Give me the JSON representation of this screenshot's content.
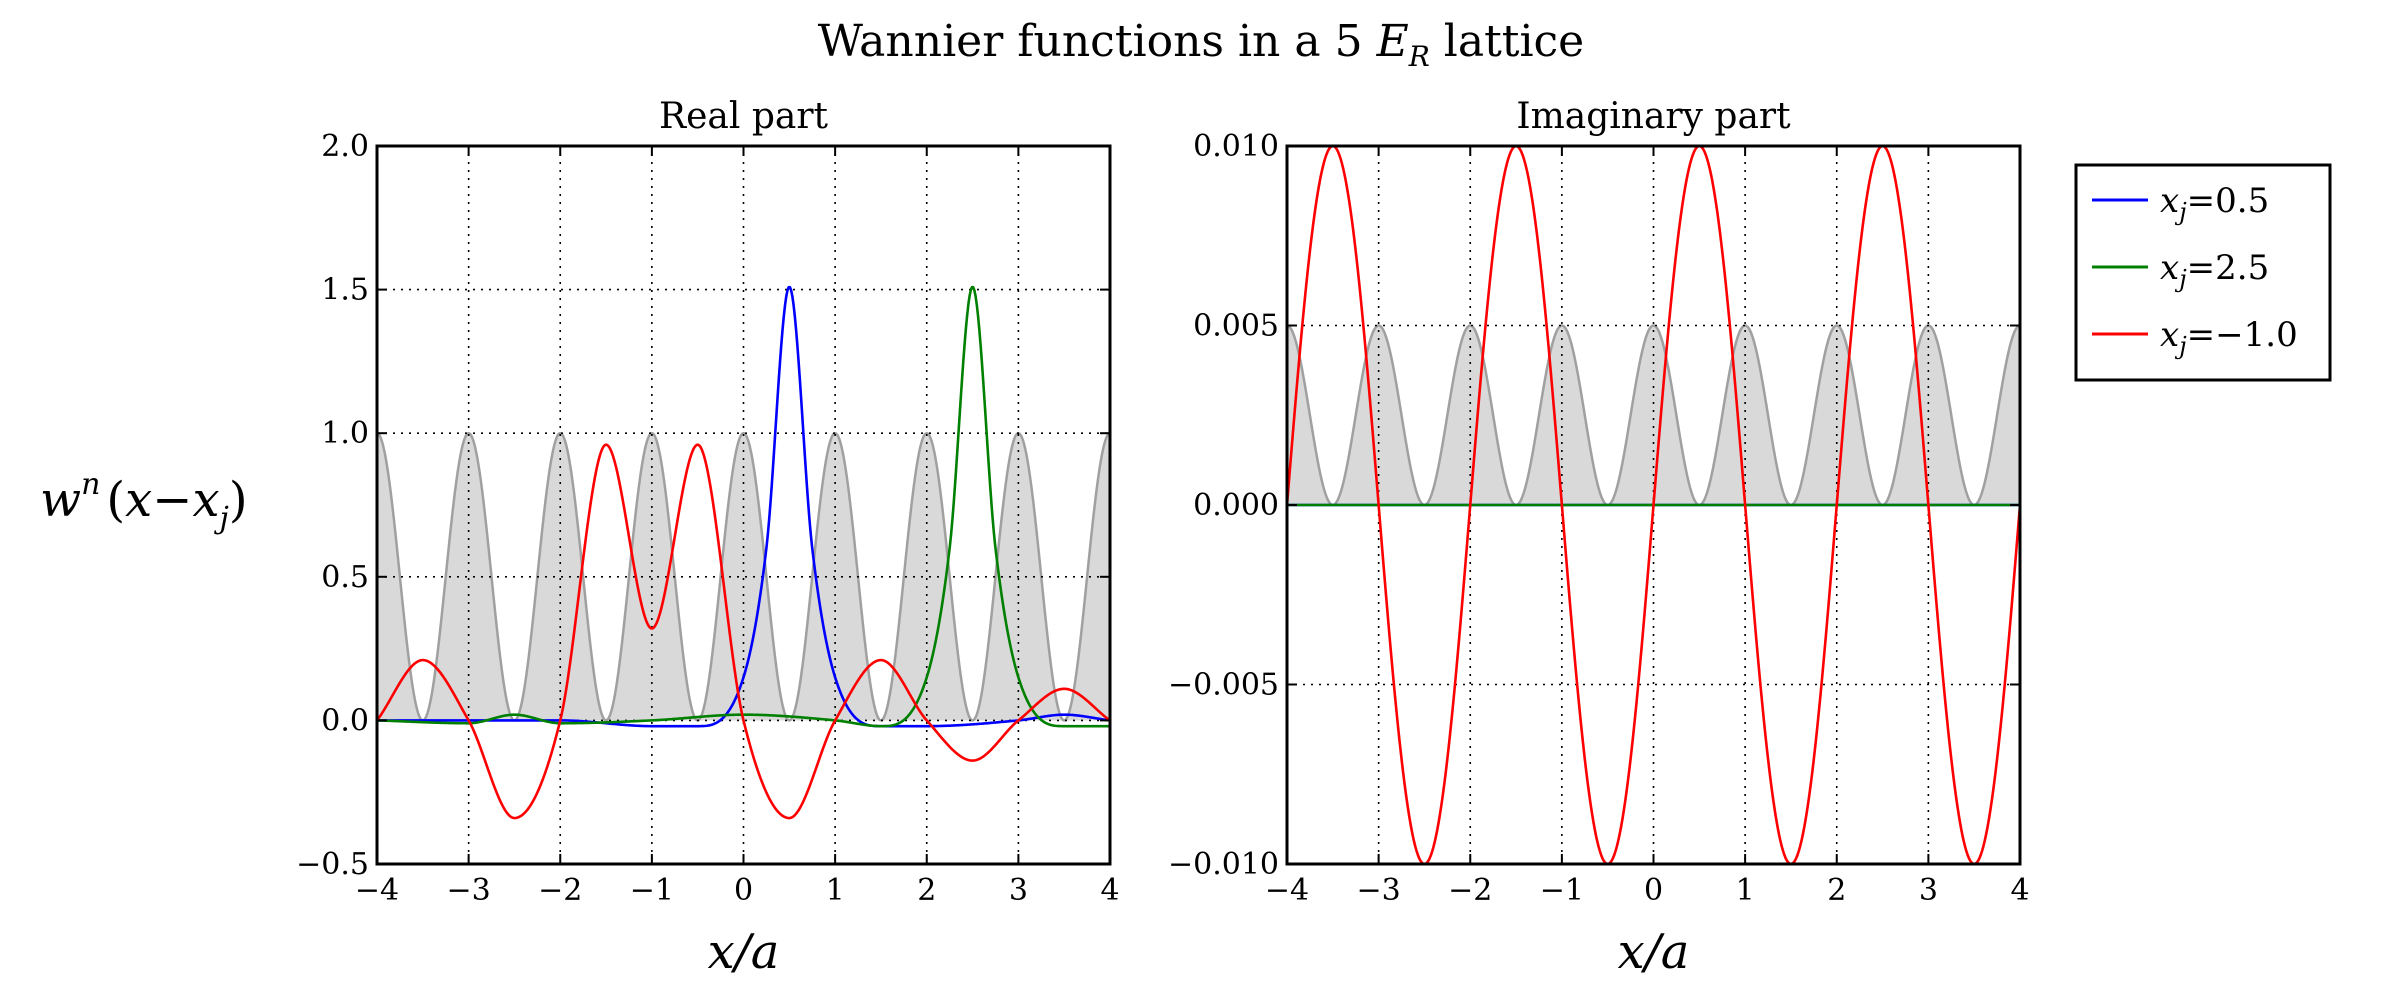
{
  "figure": {
    "title_pre": "Wannier functions in a 5 ",
    "title_sym": "E",
    "title_sub": "R",
    "title_post": " lattice"
  },
  "ylabel": {
    "w": "w",
    "sup": "n",
    "open": "(",
    "x": "x",
    "minus": "−",
    "xj": "x",
    "jsub": "j",
    "close": ")"
  },
  "colors": {
    "blue": "#0000ff",
    "green": "#008000",
    "red": "#ff0000",
    "lattice_line": "#a0a0a0",
    "lattice_fill": "#d9d9d9"
  },
  "legend": {
    "position": "right, outside plots",
    "entries": [
      {
        "sym": "x",
        "sub": "j",
        "eq": "=",
        "val": "0.5",
        "color": "#0000ff"
      },
      {
        "sym": "x",
        "sub": "j",
        "eq": "=",
        "val": "2.5",
        "color": "#008000"
      },
      {
        "sym": "x",
        "sub": "j",
        "eq": "=",
        "val": "−1.0",
        "color": "#ff0000"
      }
    ]
  },
  "chart_data": [
    {
      "type": "line",
      "title": "Real part",
      "xlabel": "x/a",
      "ylabel": "wⁿ(x−xj)",
      "xlim": [
        -4,
        4
      ],
      "ylim": [
        -0.5,
        2.0
      ],
      "xticks": [
        -4,
        -3,
        -2,
        -1,
        0,
        1,
        2,
        3,
        4
      ],
      "xtick_labels": [
        "−4",
        "−3",
        "−2",
        "−1",
        "0",
        "1",
        "2",
        "3",
        "4"
      ],
      "yticks": [
        -0.5,
        0.0,
        0.5,
        1.0,
        1.5,
        2.0
      ],
      "ytick_labels": [
        "−0.5",
        "0.0",
        "0.5",
        "1.0",
        "1.5",
        "2.0"
      ],
      "grid": true,
      "lattice": {
        "amplitude": 1.0,
        "period": 1,
        "peaks_at_integers": true
      },
      "series": [
        {
          "color": "#0000ff",
          "center": 0.5,
          "peak": 1.51,
          "x": [
            -4,
            -2,
            -1,
            -0.5,
            0,
            0.25,
            0.5,
            0.75,
            1,
            1.5,
            2,
            3,
            3.5,
            4
          ],
          "y": [
            0.0,
            0.0,
            -0.02,
            -0.02,
            0.15,
            0.6,
            1.51,
            0.6,
            0.15,
            -0.02,
            -0.02,
            0.0,
            0.02,
            0.0
          ]
        },
        {
          "color": "#008000",
          "center": 2.5,
          "peak": 1.51,
          "x": [
            -4,
            -3,
            -2.5,
            -2,
            -1,
            0,
            1,
            1.5,
            2,
            2.25,
            2.5,
            2.75,
            3,
            3.5,
            4
          ],
          "y": [
            0.0,
            -0.01,
            0.02,
            -0.01,
            0.0,
            0.02,
            0.0,
            -0.02,
            0.15,
            0.6,
            1.51,
            0.6,
            0.15,
            -0.02,
            -0.02
          ]
        },
        {
          "color": "#ff0000",
          "center": -1.0,
          "peak": 0.96,
          "x": [
            -4,
            -3.5,
            -3,
            -2.5,
            -2,
            -1.5,
            -1,
            -0.5,
            0,
            0.5,
            1,
            1.5,
            2,
            2.5,
            3,
            3.5,
            4
          ],
          "y": [
            0.0,
            0.21,
            0.0,
            -0.34,
            0.0,
            0.96,
            0.32,
            0.96,
            0.0,
            -0.34,
            0.0,
            0.21,
            0.0,
            -0.14,
            0.0,
            0.11,
            0.0
          ]
        }
      ]
    },
    {
      "type": "line",
      "title": "Imaginary part",
      "xlabel": "x/a",
      "xlim": [
        -4,
        4
      ],
      "ylim": [
        -0.01,
        0.01
      ],
      "xticks": [
        -4,
        -3,
        -2,
        -1,
        0,
        1,
        2,
        3,
        4
      ],
      "xtick_labels": [
        "−4",
        "−3",
        "−2",
        "−1",
        "0",
        "1",
        "2",
        "3",
        "4"
      ],
      "yticks": [
        -0.01,
        -0.005,
        0.0,
        0.005,
        0.01
      ],
      "ytick_labels": [
        "−0.010",
        "−0.005",
        "0.000",
        "0.005",
        "0.010"
      ],
      "grid": true,
      "lattice": {
        "amplitude": 0.005,
        "period": 1,
        "peaks_at_integers": true
      },
      "series": [
        {
          "color": "#0000ff",
          "x": [
            -4,
            4
          ],
          "y": [
            0.0,
            0.0
          ]
        },
        {
          "color": "#008000",
          "x": [
            -4,
            4
          ],
          "y": [
            0.0,
            0.0
          ]
        },
        {
          "color": "#ff0000",
          "function": "0.01*sin(pi*(x+4))",
          "x": [
            -4,
            -3.5,
            -3,
            -2.5,
            -2,
            -1.5,
            -1,
            -0.5,
            0,
            0.5,
            1,
            1.5,
            2,
            2.5,
            3,
            3.5,
            4
          ],
          "y": [
            0.0,
            0.01,
            0.0,
            -0.01,
            0.0,
            0.01,
            0.0,
            -0.01,
            0.0,
            0.01,
            0.0,
            -0.01,
            0.0,
            0.01,
            0.0,
            -0.01,
            0.0
          ]
        }
      ]
    }
  ]
}
